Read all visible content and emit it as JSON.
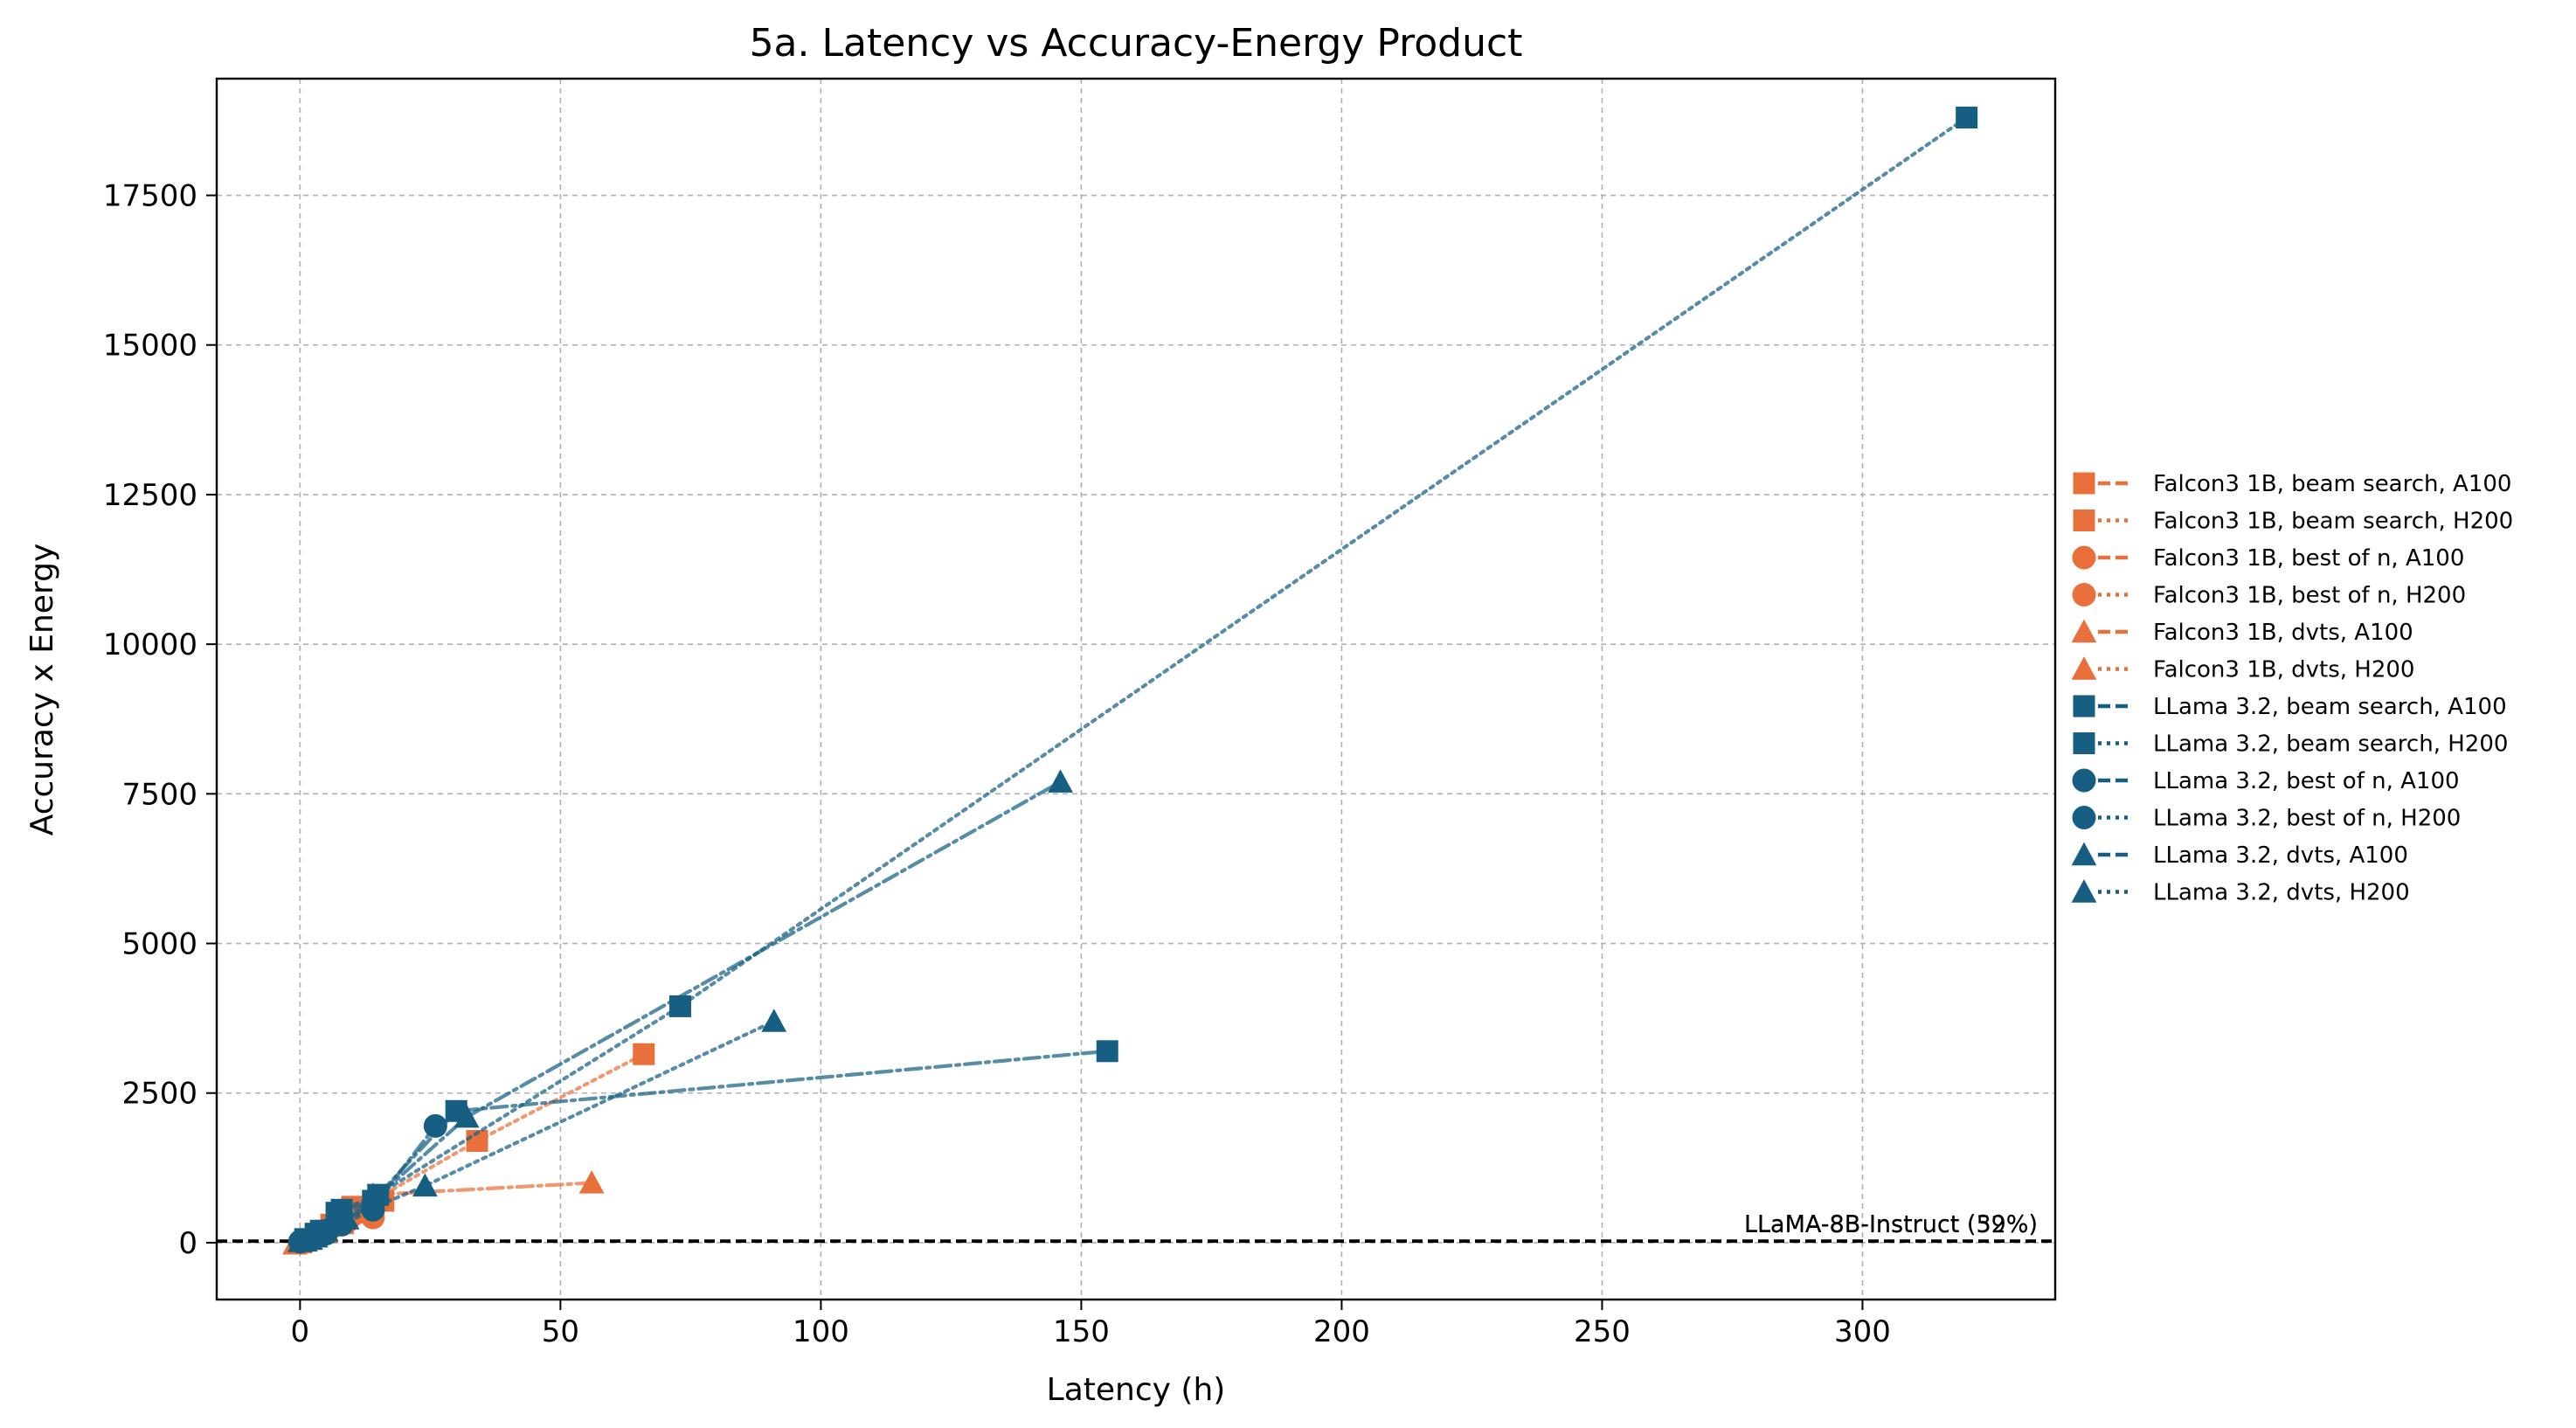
{
  "chart_data": {
    "type": "scatter",
    "title": "5a. Latency vs Accuracy-Energy Product",
    "xlabel": "Latency (h)",
    "ylabel": "Accuracy x Energy",
    "xlim": [
      -16,
      337
    ],
    "ylim": [
      -950,
      19450
    ],
    "xticks": [
      0,
      50,
      100,
      150,
      200,
      250,
      300
    ],
    "yticks": [
      0,
      2500,
      5000,
      7500,
      10000,
      12500,
      15000,
      17500
    ],
    "grid": true,
    "legend_position": "right-outside",
    "colors": {
      "falcon": "#E9703A",
      "llama": "#165F83"
    },
    "reference_lines": [
      {
        "label": "LLaMA-8B-Instruct (52%)",
        "y": 30
      },
      {
        "label": "LLaMA-8B-Instruct (39%)",
        "y": 20
      }
    ],
    "series": [
      {
        "name": "Falcon3 1B, beam search, A100",
        "color": "#E9703A",
        "marker": "square",
        "line": "dashdot",
        "x": [
          1,
          3,
          6,
          10,
          16
        ],
        "y": [
          40,
          120,
          300,
          600,
          700
        ]
      },
      {
        "name": "Falcon3 1B, beam search, H200",
        "color": "#E9703A",
        "marker": "square",
        "line": "dotted",
        "x": [
          2,
          5,
          9,
          34,
          66
        ],
        "y": [
          60,
          200,
          450,
          1700,
          3150
        ]
      },
      {
        "name": "Falcon3 1B, best of n, A100",
        "color": "#E9703A",
        "marker": "circle",
        "line": "dashdot",
        "x": [
          1,
          3,
          6,
          10,
          14
        ],
        "y": [
          30,
          100,
          250,
          450,
          480
        ]
      },
      {
        "name": "Falcon3 1B, best of n, H200",
        "color": "#E9703A",
        "marker": "circle",
        "line": "dotted",
        "x": [
          1,
          3,
          5,
          9,
          14
        ],
        "y": [
          25,
          80,
          180,
          350,
          420
        ]
      },
      {
        "name": "Falcon3 1B, dvts, A100",
        "color": "#E9703A",
        "marker": "triangle",
        "line": "dashdot",
        "x": [
          -1,
          3,
          8,
          14,
          56
        ],
        "y": [
          -20,
          100,
          350,
          800,
          1000
        ]
      },
      {
        "name": "Falcon3 1B, dvts, H200",
        "color": "#E9703A",
        "marker": "triangle",
        "line": "dotted",
        "x": [
          0,
          2,
          5,
          8,
          12
        ],
        "y": [
          0,
          60,
          180,
          320,
          500
        ]
      },
      {
        "name": "LLama 3.2, beam search, A100",
        "color": "#165F83",
        "marker": "square",
        "line": "dashdot",
        "x": [
          1,
          3,
          7,
          14,
          30,
          155
        ],
        "y": [
          50,
          150,
          500,
          700,
          2200,
          3200
        ]
      },
      {
        "name": "LLama 3.2, beam search, H200",
        "color": "#165F83",
        "marker": "square",
        "line": "dotted",
        "x": [
          1,
          4,
          8,
          15,
          73,
          320
        ],
        "y": [
          60,
          200,
          550,
          800,
          3950,
          18800
        ]
      },
      {
        "name": "LLama 3.2, best of n, A100",
        "color": "#165F83",
        "marker": "circle",
        "line": "dashdot",
        "x": [
          0,
          2,
          5,
          8,
          14,
          26
        ],
        "y": [
          20,
          60,
          200,
          400,
          600,
          1950
        ]
      },
      {
        "name": "LLama 3.2, best of n, H200",
        "color": "#165F83",
        "marker": "circle",
        "line": "dotted",
        "x": [
          0,
          2,
          5,
          8,
          14
        ],
        "y": [
          15,
          50,
          150,
          300,
          550
        ]
      },
      {
        "name": "LLama 3.2, dvts, A100",
        "color": "#165F83",
        "marker": "triangle",
        "line": "dashdot",
        "x": [
          1,
          3,
          7,
          14,
          32,
          146
        ],
        "y": [
          30,
          100,
          350,
          700,
          2100,
          7700
        ]
      },
      {
        "name": "LLama 3.2, dvts, H200",
        "color": "#165F83",
        "marker": "triangle",
        "line": "dotted",
        "x": [
          0,
          2,
          5,
          9,
          24,
          91
        ],
        "y": [
          20,
          60,
          200,
          400,
          950,
          3700
        ]
      }
    ]
  }
}
